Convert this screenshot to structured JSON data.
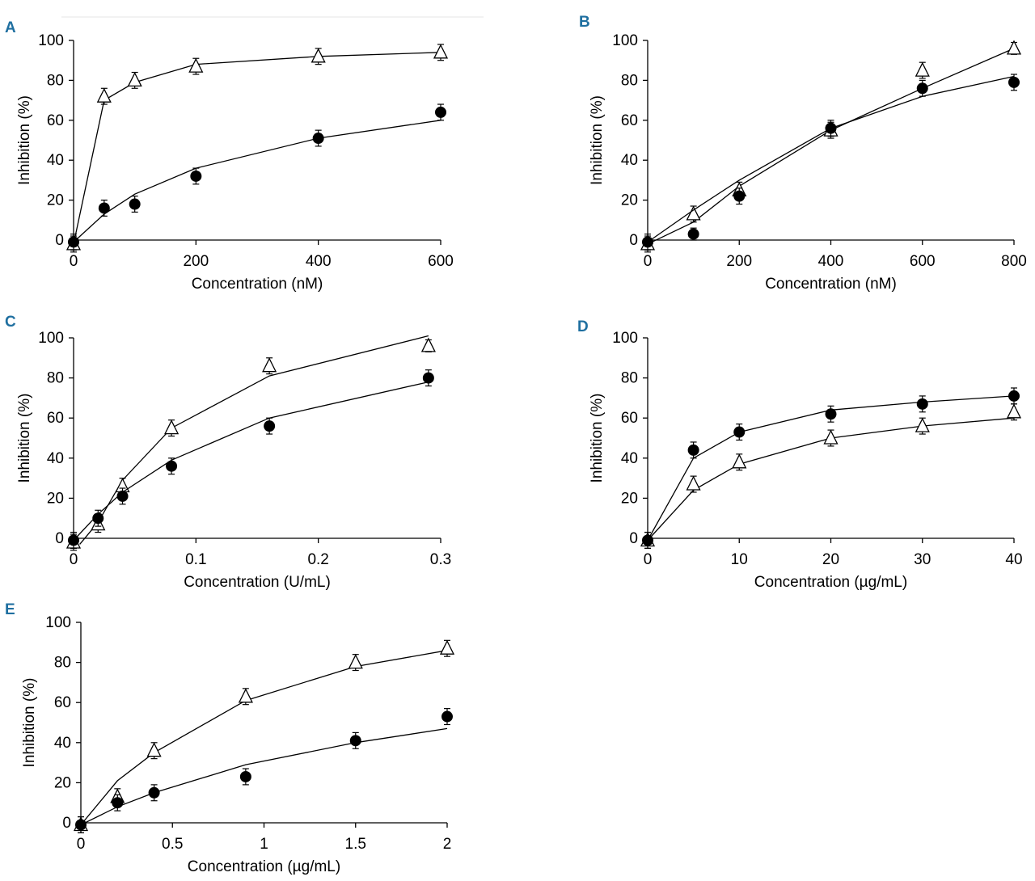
{
  "chart_data": [
    {
      "type": "line",
      "panel": "A",
      "xlabel": "Concentration (nM)",
      "ylabel": "Inhibition (%)",
      "xlim": [
        0,
        600
      ],
      "ylim": [
        0,
        100
      ],
      "xticks": [
        {
          "v": 0,
          "label": "0"
        },
        {
          "v": 200,
          "label": "200"
        },
        {
          "v": 400,
          "label": "400"
        },
        {
          "v": 600,
          "label": "600"
        }
      ],
      "yticks": [
        {
          "v": 0,
          "label": "0"
        },
        {
          "v": 20,
          "label": "20"
        },
        {
          "v": 40,
          "label": "40"
        },
        {
          "v": 60,
          "label": "60"
        },
        {
          "v": 80,
          "label": "80"
        },
        {
          "v": 100,
          "label": "100"
        }
      ],
      "series": [
        {
          "name": "triangle",
          "marker": "triangle",
          "x": [
            0,
            50,
            100,
            200,
            400,
            600
          ],
          "y": [
            -2,
            72,
            80,
            87,
            92,
            94
          ],
          "err": [
            4,
            4,
            4,
            4,
            4,
            4
          ],
          "fit": [
            [
              0,
              -2
            ],
            [
              50,
              70
            ],
            [
              100,
              79
            ],
            [
              200,
              88
            ],
            [
              400,
              92
            ],
            [
              600,
              94
            ]
          ]
        },
        {
          "name": "circle",
          "marker": "circle",
          "x": [
            0,
            50,
            100,
            200,
            400,
            600
          ],
          "y": [
            -1,
            16,
            18,
            32,
            51,
            64
          ],
          "err": [
            4,
            4,
            4,
            4,
            4,
            4
          ],
          "fit": [
            [
              0,
              -1
            ],
            [
              50,
              13
            ],
            [
              100,
              23
            ],
            [
              200,
              36
            ],
            [
              400,
              51
            ],
            [
              600,
              60
            ]
          ]
        }
      ]
    },
    {
      "type": "line",
      "panel": "B",
      "xlabel": "Concentration (nM)",
      "ylabel": "Inhibition (%)",
      "xlim": [
        0,
        800
      ],
      "ylim": [
        0,
        100
      ],
      "xticks": [
        {
          "v": 0,
          "label": "0"
        },
        {
          "v": 200,
          "label": "200"
        },
        {
          "v": 400,
          "label": "400"
        },
        {
          "v": 600,
          "label": "600"
        },
        {
          "v": 800,
          "label": "800"
        }
      ],
      "yticks": [
        {
          "v": 0,
          "label": "0"
        },
        {
          "v": 20,
          "label": "20"
        },
        {
          "v": 40,
          "label": "40"
        },
        {
          "v": 60,
          "label": "60"
        },
        {
          "v": 80,
          "label": "80"
        },
        {
          "v": 100,
          "label": "100"
        }
      ],
      "series": [
        {
          "name": "triangle",
          "marker": "triangle",
          "x": [
            0,
            100,
            200,
            400,
            600,
            800
          ],
          "y": [
            -2,
            13,
            25,
            55,
            85,
            96
          ],
          "err": [
            4,
            4,
            4,
            4,
            4,
            3
          ],
          "fit": [
            [
              0,
              -2
            ],
            [
              100,
              9
            ],
            [
              200,
              27
            ],
            [
              400,
              55
            ],
            [
              600,
              76
            ],
            [
              800,
              96
            ]
          ]
        },
        {
          "name": "circle",
          "marker": "circle",
          "x": [
            0,
            100,
            200,
            400,
            600,
            800
          ],
          "y": [
            -1,
            3,
            22,
            56,
            76,
            79
          ],
          "err": [
            4,
            3,
            4,
            4,
            4,
            4
          ],
          "fit": [
            [
              0,
              -1
            ],
            [
              100,
              15
            ],
            [
              200,
              30
            ],
            [
              400,
              56
            ],
            [
              600,
              72
            ],
            [
              800,
              82
            ]
          ]
        }
      ]
    },
    {
      "type": "line",
      "panel": "C",
      "xlabel": "Concentration (U/mL)",
      "ylabel": "Inhibition (%)",
      "xlim": [
        0,
        0.3
      ],
      "ylim": [
        0,
        100
      ],
      "xticks": [
        {
          "v": 0,
          "label": "0"
        },
        {
          "v": 0.1,
          "label": "0.1"
        },
        {
          "v": 0.2,
          "label": "0.2"
        },
        {
          "v": 0.3,
          "label": "0.3"
        }
      ],
      "yticks": [
        {
          "v": 0,
          "label": "0"
        },
        {
          "v": 20,
          "label": "20"
        },
        {
          "v": 40,
          "label": "40"
        },
        {
          "v": 60,
          "label": "60"
        },
        {
          "v": 80,
          "label": "80"
        },
        {
          "v": 100,
          "label": "100"
        }
      ],
      "series": [
        {
          "name": "triangle",
          "marker": "triangle",
          "x": [
            0,
            0.02,
            0.04,
            0.08,
            0.16,
            0.29
          ],
          "y": [
            -2,
            7,
            26,
            55,
            86,
            96
          ],
          "err": [
            4,
            4,
            4,
            4,
            4,
            3
          ],
          "fit": [
            [
              0.005,
              -3
            ],
            [
              0.02,
              8
            ],
            [
              0.04,
              29
            ],
            [
              0.08,
              55
            ],
            [
              0.16,
              81
            ],
            [
              0.29,
              101
            ]
          ]
        },
        {
          "name": "circle",
          "marker": "circle",
          "x": [
            0,
            0.02,
            0.04,
            0.08,
            0.16,
            0.29
          ],
          "y": [
            -1,
            10,
            21,
            36,
            56,
            80
          ],
          "err": [
            4,
            4,
            4,
            4,
            4,
            4
          ],
          "fit": [
            [
              0,
              -1
            ],
            [
              0.02,
              12
            ],
            [
              0.04,
              23
            ],
            [
              0.08,
              39
            ],
            [
              0.16,
              60
            ],
            [
              0.29,
              78
            ]
          ]
        }
      ]
    },
    {
      "type": "line",
      "panel": "D",
      "xlabel": "Concentration (µg/mL)",
      "ylabel": "Inhibition (%)",
      "xlim": [
        0,
        40
      ],
      "ylim": [
        0,
        100
      ],
      "xticks": [
        {
          "v": 0,
          "label": "0"
        },
        {
          "v": 10,
          "label": "10"
        },
        {
          "v": 20,
          "label": "20"
        },
        {
          "v": 30,
          "label": "30"
        },
        {
          "v": 40,
          "label": "40"
        }
      ],
      "yticks": [
        {
          "v": 0,
          "label": "0"
        },
        {
          "v": 20,
          "label": "20"
        },
        {
          "v": 40,
          "label": "40"
        },
        {
          "v": 60,
          "label": "60"
        },
        {
          "v": 80,
          "label": "80"
        },
        {
          "v": 100,
          "label": "100"
        }
      ],
      "series": [
        {
          "name": "triangle",
          "marker": "triangle",
          "x": [
            0,
            5,
            10,
            20,
            30,
            40
          ],
          "y": [
            -1,
            27,
            38,
            50,
            56,
            63
          ],
          "err": [
            4,
            4,
            4,
            4,
            4,
            4
          ],
          "fit": [
            [
              0,
              -1
            ],
            [
              5,
              24
            ],
            [
              10,
              37
            ],
            [
              20,
              50
            ],
            [
              30,
              56
            ],
            [
              40,
              60
            ]
          ]
        },
        {
          "name": "circle",
          "marker": "circle",
          "x": [
            0,
            5,
            10,
            20,
            30,
            40
          ],
          "y": [
            -1,
            44,
            53,
            62,
            67,
            71
          ],
          "err": [
            4,
            4,
            4,
            4,
            4,
            4
          ],
          "fit": [
            [
              0,
              -1
            ],
            [
              5,
              40
            ],
            [
              10,
              53
            ],
            [
              20,
              64
            ],
            [
              30,
              68
            ],
            [
              40,
              71
            ]
          ]
        }
      ]
    },
    {
      "type": "line",
      "panel": "E",
      "xlabel": "Concentration (µg/mL)",
      "ylabel": "Inhibition (%)",
      "xlim": [
        0,
        2
      ],
      "ylim": [
        0,
        100
      ],
      "xticks": [
        {
          "v": 0,
          "label": "0"
        },
        {
          "v": 0.5,
          "label": "0.5"
        },
        {
          "v": 1,
          "label": "1"
        },
        {
          "v": 1.5,
          "label": "1.5"
        },
        {
          "v": 2,
          "label": "2"
        }
      ],
      "yticks": [
        {
          "v": 0,
          "label": "0"
        },
        {
          "v": 20,
          "label": "20"
        },
        {
          "v": 40,
          "label": "40"
        },
        {
          "v": 60,
          "label": "60"
        },
        {
          "v": 80,
          "label": "80"
        },
        {
          "v": 100,
          "label": "100"
        }
      ],
      "series": [
        {
          "name": "triangle",
          "marker": "triangle",
          "x": [
            0,
            0.2,
            0.4,
            0.9,
            1.5,
            2
          ],
          "y": [
            -1,
            13,
            36,
            63,
            80,
            87
          ],
          "err": [
            4,
            4,
            4,
            4,
            4,
            4
          ],
          "fit": [
            [
              0,
              -1
            ],
            [
              0.2,
              21
            ],
            [
              0.4,
              35
            ],
            [
              0.9,
              61
            ],
            [
              1.5,
              78
            ],
            [
              2,
              86
            ]
          ]
        },
        {
          "name": "circle",
          "marker": "circle",
          "x": [
            0,
            0.2,
            0.4,
            0.9,
            1.5,
            2
          ],
          "y": [
            -1,
            10,
            15,
            23,
            41,
            53
          ],
          "err": [
            4,
            4,
            4,
            4,
            4,
            4
          ],
          "fit": [
            [
              0,
              -1
            ],
            [
              0.2,
              8
            ],
            [
              0.4,
              15
            ],
            [
              0.9,
              29
            ],
            [
              1.5,
              40
            ],
            [
              2,
              47
            ]
          ]
        }
      ]
    }
  ]
}
